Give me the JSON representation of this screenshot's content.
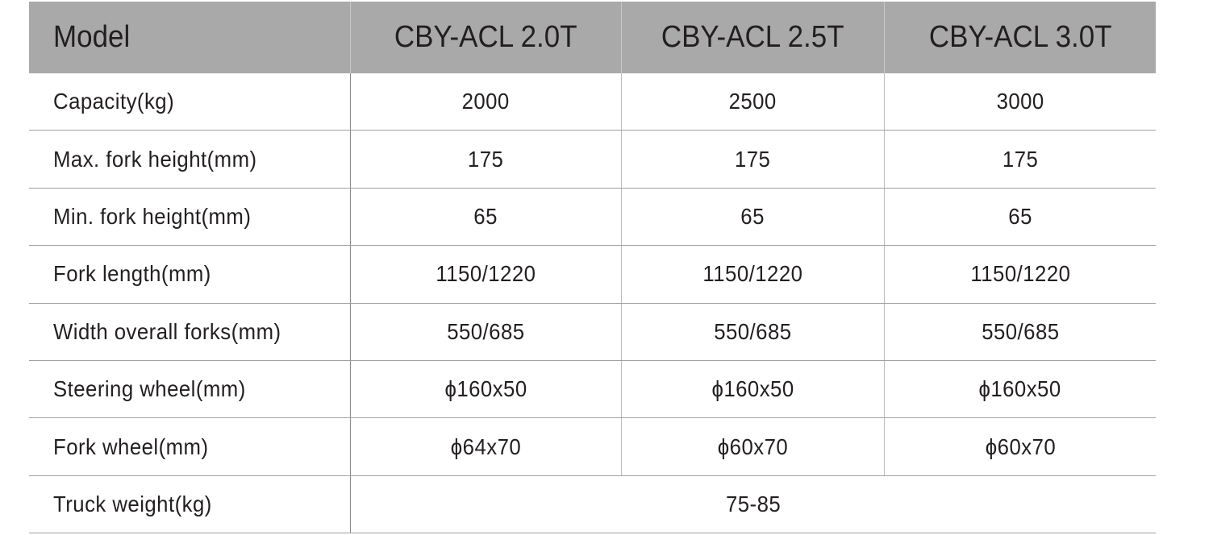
{
  "table": {
    "header": [
      "Model",
      "CBY-ACL 2.0T",
      "CBY-ACL 2.5T",
      "CBY-ACL 3.0T"
    ],
    "rows": [
      {
        "label": "Capacity(kg)",
        "values": [
          "2000",
          "2500",
          "3000"
        ]
      },
      {
        "label": "Max. fork height(mm)",
        "values": [
          "175",
          "175",
          "175"
        ]
      },
      {
        "label": "Min. fork height(mm)",
        "values": [
          "65",
          "65",
          "65"
        ]
      },
      {
        "label": "Fork length(mm)",
        "values": [
          "1150/1220",
          "1150/1220",
          "1150/1220"
        ]
      },
      {
        "label": "Width overall forks(mm)",
        "values": [
          "550/685",
          "550/685",
          "550/685"
        ]
      },
      {
        "label": "Steering wheel(mm)",
        "values": [
          "ϕ160x50",
          "ϕ160x50",
          "ϕ160x50"
        ]
      },
      {
        "label": "Fork wheel(mm)",
        "values": [
          "ϕ64x70",
          "ϕ60x70",
          "ϕ60x70"
        ]
      },
      {
        "label": "Truck weight(kg)",
        "span_value": "75-85"
      }
    ],
    "header_color": "#a9a9a9"
  }
}
